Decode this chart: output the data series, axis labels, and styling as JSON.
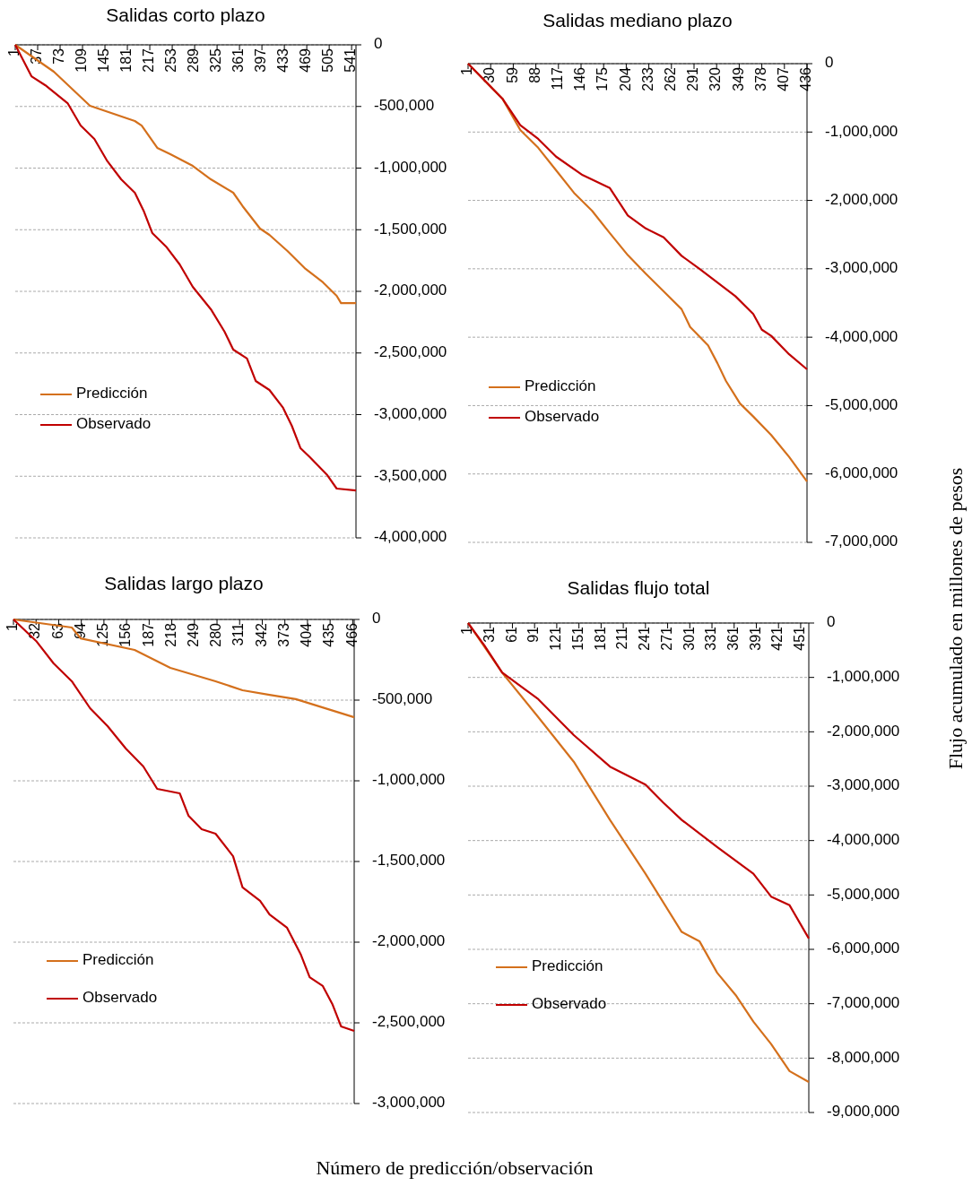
{
  "chart_data": [
    {
      "type": "line",
      "title": "Salidas corto plazo",
      "xlim": [
        1,
        548
      ],
      "xticks": [
        1,
        37,
        73,
        109,
        145,
        181,
        217,
        253,
        289,
        325,
        361,
        397,
        433,
        469,
        505,
        541
      ],
      "ylim": [
        -4000000,
        0
      ],
      "yticks": [
        {
          "value": 0,
          "label": "0"
        },
        {
          "value": -500000,
          "label": "-500,000"
        },
        {
          "value": -1000000,
          "label": "-1,000,000"
        },
        {
          "value": -1500000,
          "label": "-1,500,000"
        },
        {
          "value": -2000000,
          "label": "-2,000,000"
        },
        {
          "value": -2500000,
          "label": "-2,500,000"
        },
        {
          "value": -3000000,
          "label": "-3,000,000"
        },
        {
          "value": -3500000,
          "label": "-3,500,000"
        },
        {
          "value": -4000000,
          "label": "-4,000,000"
        }
      ],
      "grid": "y",
      "legend": "left",
      "annotations": [
        "Número de predicción/observación",
        "Flujo acumulado en millones de pesos"
      ],
      "series": [
        {
          "name": "Predicción",
          "color": "#d4701c",
          "x": [
            1,
            63,
            121,
            193,
            204,
            229,
            250,
            286,
            315,
            351,
            366,
            394,
            409,
            438,
            467,
            495,
            517,
            524,
            548
          ],
          "values": [
            0,
            -218000,
            -495000,
            -618000,
            -655000,
            -836000,
            -887000,
            -982000,
            -1091000,
            -1200000,
            -1309000,
            -1491000,
            -1542000,
            -1673000,
            -1818000,
            -1927000,
            -2036000,
            -2095000,
            -2095000
          ]
        },
        {
          "name": "Observado",
          "color": "#c00000",
          "x": [
            1,
            27,
            49,
            85,
            106,
            128,
            149,
            171,
            193,
            207,
            221,
            243,
            265,
            286,
            315,
            337,
            351,
            373,
            387,
            409,
            431,
            445,
            459,
            474,
            488,
            502,
            517,
            548
          ],
          "values": [
            0,
            -255000,
            -327000,
            -473000,
            -655000,
            -764000,
            -945000,
            -1091000,
            -1200000,
            -1345000,
            -1527000,
            -1636000,
            -1782000,
            -1964000,
            -2145000,
            -2327000,
            -2473000,
            -2545000,
            -2727000,
            -2800000,
            -2945000,
            -3091000,
            -3273000,
            -3345000,
            -3418000,
            -3491000,
            -3600000,
            -3615000
          ]
        }
      ]
    },
    {
      "type": "line",
      "title": "Salidas mediano plazo",
      "xlim": [
        1,
        436
      ],
      "xticks": [
        1,
        30,
        59,
        88,
        117,
        146,
        175,
        204,
        233,
        262,
        291,
        320,
        349,
        378,
        407,
        436
      ],
      "ylim": [
        -7000000,
        0
      ],
      "yticks": [
        {
          "value": 0,
          "label": "0"
        },
        {
          "value": -1000000,
          "label": "-1,000,000"
        },
        {
          "value": -2000000,
          "label": "-2,000,000"
        },
        {
          "value": -3000000,
          "label": "-3,000,000"
        },
        {
          "value": -4000000,
          "label": "-4,000,000"
        },
        {
          "value": -5000000,
          "label": "-5,000,000"
        },
        {
          "value": -6000000,
          "label": "-6,000,000"
        },
        {
          "value": -7000000,
          "label": "-7,000,000"
        }
      ],
      "grid": "y",
      "legend": "left",
      "series": [
        {
          "name": "Predicción",
          "color": "#d4701c",
          "x": [
            1,
            45,
            68,
            91,
            114,
            137,
            160,
            183,
            206,
            229,
            252,
            275,
            286,
            309,
            321,
            332,
            350,
            367,
            390,
            413,
            436
          ],
          "values": [
            0,
            -510000,
            -970000,
            -1230000,
            -1560000,
            -1890000,
            -2150000,
            -2480000,
            -2800000,
            -3070000,
            -3330000,
            -3590000,
            -3850000,
            -4120000,
            -4380000,
            -4640000,
            -4970000,
            -5160000,
            -5430000,
            -5750000,
            -6110000
          ]
        },
        {
          "name": "Observado",
          "color": "#c00000",
          "x": [
            1,
            45,
            68,
            91,
            114,
            148,
            183,
            206,
            229,
            252,
            275,
            298,
            321,
            344,
            367,
            378,
            390,
            413,
            436
          ],
          "values": [
            0,
            -510000,
            -900000,
            -1100000,
            -1360000,
            -1630000,
            -1820000,
            -2220000,
            -2410000,
            -2540000,
            -2810000,
            -3000000,
            -3200000,
            -3400000,
            -3660000,
            -3890000,
            -3980000,
            -4250000,
            -4470000
          ]
        }
      ]
    },
    {
      "type": "line",
      "title": "Salidas largo plazo",
      "xlim": [
        1,
        468
      ],
      "xticks": [
        1,
        32,
        63,
        94,
        125,
        156,
        187,
        218,
        249,
        280,
        311,
        342,
        373,
        404,
        435,
        466
      ],
      "ylim": [
        -3000000,
        0
      ],
      "yticks": [
        {
          "value": 0,
          "label": "0"
        },
        {
          "value": -500000,
          "label": "-500,000"
        },
        {
          "value": -1000000,
          "label": "-1,000,000"
        },
        {
          "value": -1500000,
          "label": "-1,500,000"
        },
        {
          "value": -2000000,
          "label": "-2,000,000"
        },
        {
          "value": -2500000,
          "label": "-2,500,000"
        },
        {
          "value": -3000000,
          "label": "-3,000,000"
        }
      ],
      "grid": "y",
      "legend": "bottom left",
      "series": [
        {
          "name": "Predicción",
          "color": "#d4701c",
          "x": [
            1,
            81,
            93,
            167,
            216,
            278,
            315,
            352,
            388,
            468
          ],
          "values": [
            0,
            -50000,
            -117000,
            -189000,
            -300000,
            -383000,
            -439000,
            -467000,
            -494000,
            -606000
          ]
        },
        {
          "name": "Observado",
          "color": "#c00000",
          "x": [
            1,
            32,
            56,
            81,
            106,
            130,
            155,
            179,
            198,
            229,
            241,
            259,
            278,
            302,
            315,
            339,
            352,
            376,
            395,
            407,
            425,
            438,
            450,
            468
          ],
          "values": [
            0,
            -133000,
            -272000,
            -383000,
            -550000,
            -661000,
            -800000,
            -911000,
            -1050000,
            -1078000,
            -1217000,
            -1300000,
            -1328000,
            -1467000,
            -1661000,
            -1744000,
            -1828000,
            -1911000,
            -2078000,
            -2217000,
            -2272000,
            -2383000,
            -2522000,
            -2550000
          ]
        }
      ]
    },
    {
      "type": "line",
      "title": "Salidas flujo total",
      "xlim": [
        1,
        462
      ],
      "xticks": [
        1,
        31,
        61,
        91,
        121,
        151,
        181,
        211,
        241,
        271,
        301,
        331,
        361,
        391,
        421,
        451
      ],
      "ylim": [
        -9000000,
        0
      ],
      "yticks": [
        {
          "value": 0,
          "label": "0"
        },
        {
          "value": -1000000,
          "label": "-1,000,000"
        },
        {
          "value": -2000000,
          "label": "-2,000,000"
        },
        {
          "value": -3000000,
          "label": "-3,000,000"
        },
        {
          "value": -4000000,
          "label": "-4,000,000"
        },
        {
          "value": -5000000,
          "label": "-5,000,000"
        },
        {
          "value": -6000000,
          "label": "-6,000,000"
        },
        {
          "value": -7000000,
          "label": "-7,000,000"
        },
        {
          "value": -8000000,
          "label": "-8,000,000"
        },
        {
          "value": -9000000,
          "label": "-9,000,000"
        }
      ],
      "grid": "y",
      "legend": "bottom left",
      "series": [
        {
          "name": "Predicción",
          "color": "#d4701c",
          "x": [
            1,
            47,
            96,
            144,
            193,
            241,
            290,
            314,
            338,
            363,
            387,
            411,
            436,
            462
          ],
          "values": [
            0,
            -910000,
            -1730000,
            -2550000,
            -3620000,
            -4610000,
            -5680000,
            -5850000,
            -6430000,
            -6840000,
            -7330000,
            -7740000,
            -8240000,
            -8440000
          ]
        },
        {
          "name": "Observado",
          "color": "#c00000",
          "x": [
            1,
            23,
            47,
            96,
            144,
            193,
            241,
            265,
            290,
            338,
            387,
            411,
            436,
            462
          ],
          "values": [
            0,
            -410000,
            -910000,
            -1400000,
            -2060000,
            -2640000,
            -2970000,
            -3300000,
            -3620000,
            -4120000,
            -4610000,
            -5030000,
            -5190000,
            -5800000
          ]
        }
      ]
    }
  ]
}
